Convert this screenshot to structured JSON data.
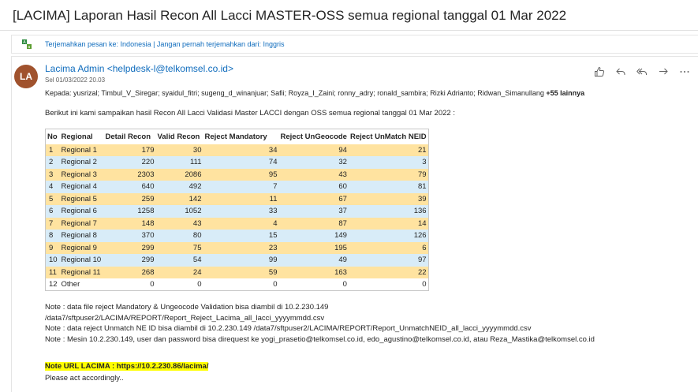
{
  "email": {
    "subject": "[LACIMA] Laporan Hasil Recon All Lacci MASTER-OSS semua regional tanggal 01 Mar 2022",
    "translate_text": "Terjemahkan pesan ke: Indonesia | Jangan pernah terjemahkan dari: Inggris",
    "avatar_initials": "LA",
    "avatar_color": "#a0522d",
    "sender": "Lacima Admin <helpdesk-l@telkomsel.co.id>",
    "date": "Sel 01/03/2022 20.03",
    "to_label": "Kepada:",
    "to_recipients": "yusrizal; Timbul_V_Siregar; syaidul_fitri; sugeng_d_winanjuar; Safii; Royza_I_Zaini; ronny_adry; ronald_sambira; Rizki Adrianto; Ridwan_Simanullang",
    "to_more": "+55 lainnya",
    "intro": "Berikut ini kami sampaikan hasil Recon All Lacci Validasi Master LACCI dengan OSS semua regional tanggal 01 Mar 2022 :",
    "actions": [
      "like-icon",
      "reply-icon",
      "reply-all-icon",
      "forward-icon",
      "more-icon"
    ]
  },
  "table": {
    "headers": [
      "No",
      "Regional",
      "Detail Recon",
      "Valid Recon",
      "Reject Mandatory",
      "Reject UnGeocode",
      "Reject UnMatch NEID"
    ],
    "rows": [
      [
        "1",
        "Regional 1",
        "179",
        "30",
        "34",
        "94",
        "21"
      ],
      [
        "2",
        "Regional 2",
        "220",
        "111",
        "74",
        "32",
        "3"
      ],
      [
        "3",
        "Regional 3",
        "2303",
        "2086",
        "95",
        "43",
        "79"
      ],
      [
        "4",
        "Regional 4",
        "640",
        "492",
        "7",
        "60",
        "81"
      ],
      [
        "5",
        "Regional 5",
        "259",
        "142",
        "11",
        "67",
        "39"
      ],
      [
        "6",
        "Regional 6",
        "1258",
        "1052",
        "33",
        "37",
        "136"
      ],
      [
        "7",
        "Regional 7",
        "148",
        "43",
        "4",
        "87",
        "14"
      ],
      [
        "8",
        "Regional 8",
        "370",
        "80",
        "15",
        "149",
        "126"
      ],
      [
        "9",
        "Regional 9",
        "299",
        "75",
        "23",
        "195",
        "6"
      ],
      [
        "10",
        "Regional 10",
        "299",
        "54",
        "99",
        "49",
        "97"
      ],
      [
        "11",
        "Regional 11",
        "268",
        "24",
        "59",
        "163",
        "22"
      ],
      [
        "12",
        "Other",
        "0",
        "0",
        "0",
        "0",
        "0"
      ]
    ],
    "row_colors": {
      "odd": "#ffe3a0",
      "even": "#d8ecf8"
    }
  },
  "notes": [
    "Note : data file reject Mandatory & Ungeocode Validation bisa diambil di 10.2.230.149",
    "/data7/sftpuser2/LACIMA/REPORT/Report_Reject_Lacima_all_lacci_yyyymmdd.csv",
    "Note : data reject Unmatch NE ID bisa diambil di 10.2.230.149 /data7/sftpuser2/LACIMA/REPORT/Report_UnmatchNEID_all_lacci_yyyymmdd.csv",
    "Note : Mesin 10.2.230.149, user dan password bisa direquest ke yogi_prasetio@telkomsel.co.id, edo_agustino@telkomsel.co.id, atau Reza_Mastika@telkomsel.co.id"
  ],
  "url_note": "Note URL LACIMA : https://10.2.230.86/lacima/",
  "closing": "Please act accordingly.."
}
